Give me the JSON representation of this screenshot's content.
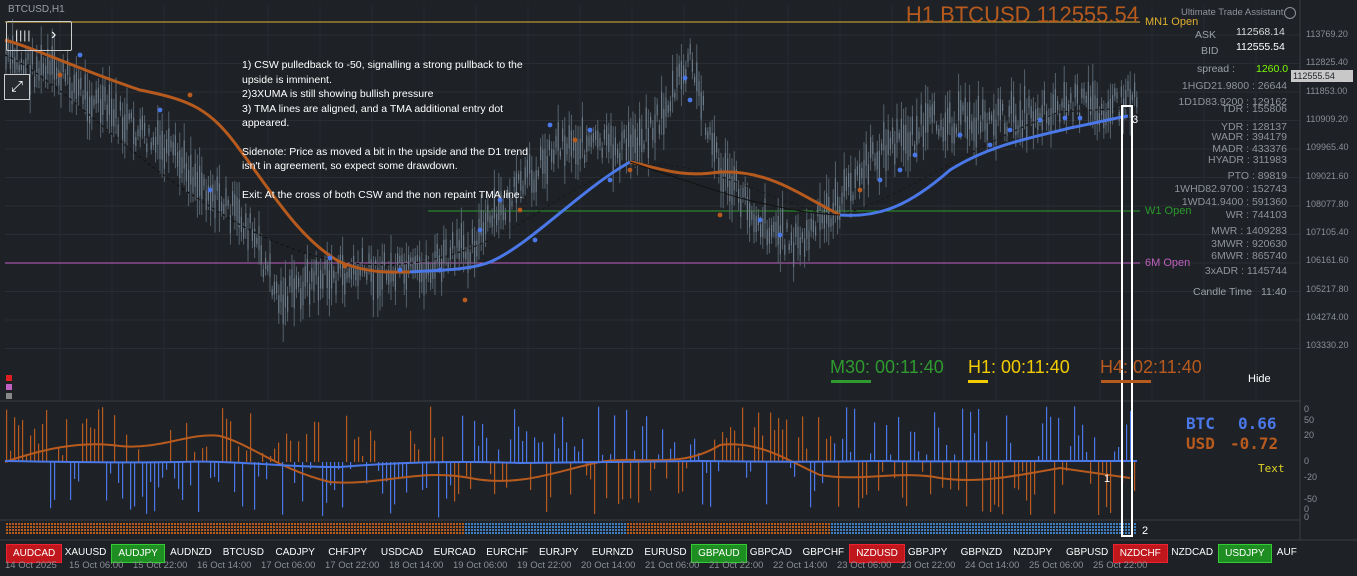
{
  "symbol": "BTCUSD,H1",
  "big_title": "H1 BTCUSD 112555.54",
  "note": {
    "lines": [
      "1) CSW pulledback to -50, signalling a strong pullback to the upside is imminent.",
      "2)3XUMA is still showing bullish pressure",
      "3) TMA lines are aligned, and a TMA additional entry dot appeared.",
      "",
      "Sidenote: Price as moved a bit in the upside and the D1 trend isn't in agreement, so expect some drawdown.",
      "",
      "Exit: At the cross of both CSW and the non repaint TMA line."
    ]
  },
  "levels": {
    "mn1": "MN1 Open",
    "w1": "W1 Open",
    "m6": "6M Open"
  },
  "panel": {
    "title": "Ultimate Trade Assistant",
    "ask_label": "ASK",
    "ask_value": "112568.14",
    "bid_label": "BID",
    "bid_value": "112555.54",
    "spread_label": "spread :",
    "spread_value": "1260.0",
    "rows": [
      "1HGD21.9800 : 26644",
      "1D1D83.9200 : 129162",
      "TDR : 155806",
      "YDR : 128137",
      "WADR : 394179",
      "MADR : 433376",
      "HYADR : 311983",
      "PTO : 89819",
      "1WHD82.9700 : 152743",
      "1WD41.9400 : 591360",
      "WR : 744103",
      "MWR : 1409283",
      "3MWR : 920630",
      "6MWR : 865740",
      "3xADR : 1145744"
    ],
    "candle_time_label": "Candle Time",
    "candle_time_value": "11:40"
  },
  "timers": {
    "m30": "M30: 00:11:40",
    "h1": "H1: 00:11:40",
    "h4": "H4: 02:11:40"
  },
  "hide_label": "Hide",
  "price_axis": [
    "113769.20",
    "112825.40",
    "111853.00",
    "110909.20",
    "109965.40",
    "109021.60",
    "108077.80",
    "107105.40",
    "106161.60",
    "105217.80",
    "104274.00",
    "103330.20"
  ],
  "current_price_tag": "112555.54",
  "csw": {
    "line1_cur": "BTC",
    "line1_val": "0.66",
    "line2_cur": "USD",
    "line2_val": "-0.72",
    "text_label": "Text",
    "markers": [
      "1",
      "2",
      "3"
    ],
    "axis": [
      "0",
      "50",
      "20",
      "0",
      "-20",
      "-50",
      "0",
      "0"
    ]
  },
  "pairs": [
    {
      "label": "AUDCAD",
      "state": "red"
    },
    {
      "label": "XAUUSD",
      "state": "none"
    },
    {
      "label": "AUDJPY",
      "state": "green"
    },
    {
      "label": "AUDNZD",
      "state": "none"
    },
    {
      "label": "BTCUSD",
      "state": "none"
    },
    {
      "label": "CADJPY",
      "state": "none"
    },
    {
      "label": "CHFJPY",
      "state": "none"
    },
    {
      "label": "USDCAD",
      "state": "none"
    },
    {
      "label": "EURCAD",
      "state": "none"
    },
    {
      "label": "EURCHF",
      "state": "none"
    },
    {
      "label": "EURJPY",
      "state": "none"
    },
    {
      "label": "EURNZD",
      "state": "none"
    },
    {
      "label": "EURUSD",
      "state": "none"
    },
    {
      "label": "GBPAUD",
      "state": "green"
    },
    {
      "label": "GBPCAD",
      "state": "none"
    },
    {
      "label": "GBPCHF",
      "state": "none"
    },
    {
      "label": "NZDUSD",
      "state": "red"
    },
    {
      "label": "GBPJPY",
      "state": "none"
    },
    {
      "label": "GBPNZD",
      "state": "none"
    },
    {
      "label": "NZDJPY",
      "state": "none"
    },
    {
      "label": "GBPUSD",
      "state": "none"
    },
    {
      "label": "NZDCHF",
      "state": "red"
    },
    {
      "label": "NZDCAD",
      "state": "none"
    },
    {
      "label": "USDJPY",
      "state": "green"
    },
    {
      "label": "AUF",
      "state": "none"
    }
  ],
  "time_axis": [
    "14 Oct 2025",
    "15 Oct 06:00",
    "15 Oct 22:00",
    "16 Oct 14:00",
    "17 Oct 06:00",
    "17 Oct 22:00",
    "18 Oct 14:00",
    "19 Oct 06:00",
    "19 Oct 22:00",
    "20 Oct 14:00",
    "21 Oct 06:00",
    "21 Oct 22:00",
    "22 Oct 14:00",
    "23 Oct 06:00",
    "23 Oct 22:00",
    "24 Oct 14:00",
    "25 Oct 06:00",
    "25 Oct 22:00"
  ],
  "colors": {
    "bg": "#1e2126",
    "candle": "#5b6b78",
    "tma_down": "#b75a1e",
    "tma_up": "#4a78e8",
    "mn1": "#e0b030",
    "w1": "#2a9a2a",
    "m6": "#c060c0",
    "m30": "#2f9a2f",
    "h1": "#f2cc00",
    "h4": "#b75a1e"
  }
}
